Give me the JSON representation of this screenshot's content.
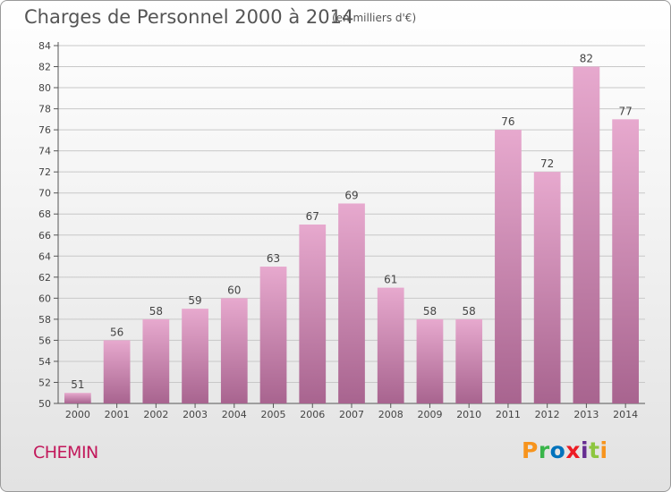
{
  "header": {
    "title": "Charges de Personnel 2000 à 2014",
    "subtitle": "(en milliers d'€)"
  },
  "footer": {
    "commune": "CHEMIN",
    "logo_text": "Proxiti",
    "logo_colors": [
      "#f7941d",
      "#39b54a",
      "#0072bc",
      "#ed1c24",
      "#662d91",
      "#8dc63f",
      "#f7941d"
    ]
  },
  "colors": {
    "bar_top": "#e7a9ce",
    "bar_bottom": "#a8648f",
    "grid": "#c8c8c8",
    "text": "#444444"
  },
  "chart_data": {
    "type": "bar",
    "title": "Charges de Personnel 2000 à 2014",
    "subtitle": "(en milliers d'€)",
    "categories": [
      "2000",
      "2001",
      "2002",
      "2003",
      "2004",
      "2005",
      "2006",
      "2007",
      "2008",
      "2009",
      "2010",
      "2011",
      "2012",
      "2013",
      "2014"
    ],
    "values": [
      51,
      56,
      58,
      59,
      60,
      63,
      67,
      69,
      61,
      58,
      58,
      76,
      72,
      82,
      77
    ],
    "ylim": [
      50,
      84
    ],
    "yticks": [
      50,
      52,
      54,
      56,
      58,
      60,
      62,
      64,
      66,
      68,
      70,
      72,
      74,
      76,
      78,
      80,
      82,
      84
    ],
    "grid": true,
    "data_labels": true
  }
}
